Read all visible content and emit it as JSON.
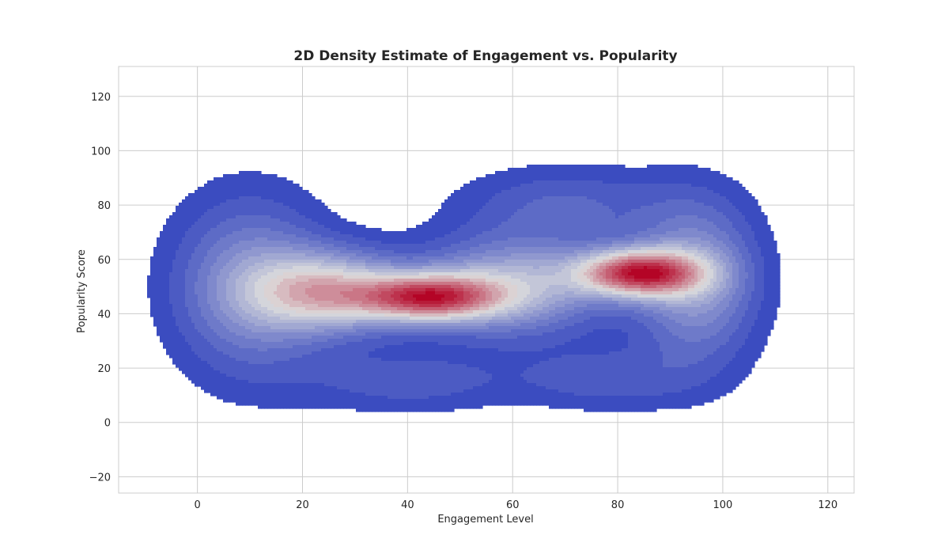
{
  "chart_data": {
    "type": "kde2d",
    "title": "2D Density Estimate of Engagement vs. Popularity",
    "xlabel": "Engagement Level",
    "ylabel": "Popularity Score",
    "xlim": [
      -15,
      125
    ],
    "ylim": [
      -26,
      131
    ],
    "xticks": [
      0,
      20,
      40,
      60,
      80,
      100,
      120
    ],
    "yticks": [
      -20,
      0,
      20,
      40,
      60,
      80,
      100,
      120
    ],
    "xtick_labels": [
      "0",
      "20",
      "40",
      "60",
      "80",
      100,
      "120"
    ],
    "ytick_labels": [
      "−20",
      "0",
      "20",
      "40",
      "60",
      "80",
      "100",
      "120"
    ],
    "grid": true,
    "colormap": "coolwarm",
    "levels": 20,
    "color_low": "#3b4cc0",
    "color_mid": "#dddddd",
    "color_high": "#b40426",
    "density_components": [
      {
        "x": 10,
        "y": 50,
        "sx": 10,
        "sy": 22,
        "w": 0.7
      },
      {
        "x": 25,
        "y": 48,
        "sx": 10,
        "sy": 10,
        "w": 1.3
      },
      {
        "x": 44,
        "y": 46,
        "sx": 9,
        "sy": 6,
        "w": 1.8
      },
      {
        "x": 60,
        "y": 50,
        "sx": 12,
        "sy": 12,
        "w": 1.0
      },
      {
        "x": 84,
        "y": 55,
        "sx": 8,
        "sy": 6,
        "w": 2.0
      },
      {
        "x": 95,
        "y": 52,
        "sx": 8,
        "sy": 20,
        "w": 0.8
      },
      {
        "x": 70,
        "y": 80,
        "sx": 14,
        "sy": 10,
        "w": 0.35
      },
      {
        "x": 40,
        "y": 15,
        "sx": 14,
        "sy": 8,
        "w": 0.3
      },
      {
        "x": 78,
        "y": 16,
        "sx": 12,
        "sy": 8,
        "w": 0.3
      }
    ]
  }
}
